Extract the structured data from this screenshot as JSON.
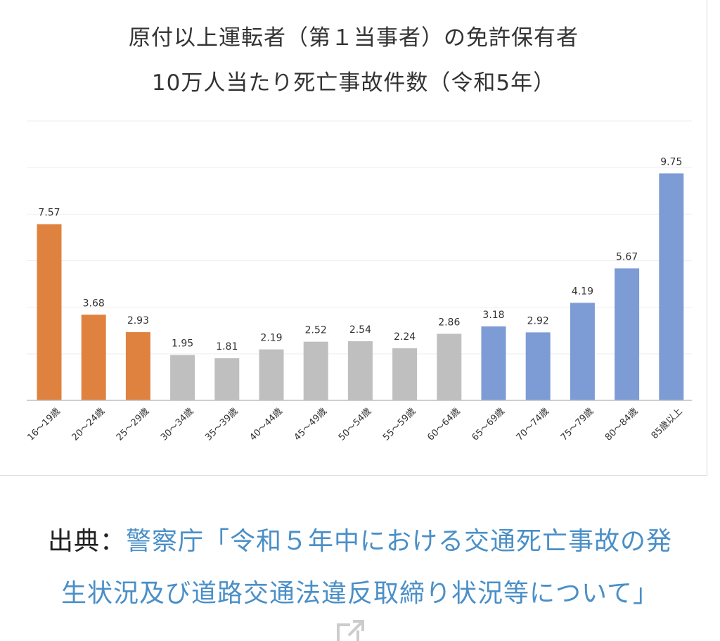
{
  "chart_data": {
    "type": "bar",
    "title_lines": [
      "原付以上運転者（第１当事者）の免許保有者",
      "10万人当たり死亡事故件数（令和5年）"
    ],
    "categories": [
      "16～19歳",
      "20～24歳",
      "25～29歳",
      "30～34歳",
      "35～39歳",
      "40～44歳",
      "45～49歳",
      "50～54歳",
      "55～59歳",
      "60～64歳",
      "65～69歳",
      "70～74歳",
      "75～79歳",
      "80～84歳",
      "85歳以上"
    ],
    "values": [
      7.57,
      3.68,
      2.93,
      1.95,
      1.81,
      2.19,
      2.52,
      2.54,
      2.24,
      2.86,
      3.18,
      2.92,
      4.19,
      5.67,
      9.75
    ],
    "value_labels": [
      "7.57",
      "3.68",
      "2.93",
      "1.95",
      "1.81",
      "2.19",
      "2.52",
      "2.54",
      "2.24",
      "2.86",
      "3.18",
      "2.92",
      "4.19",
      "5.67",
      "9.75"
    ],
    "bar_colors": [
      "#e0823f",
      "#e0823f",
      "#e0823f",
      "#bfbfbf",
      "#bfbfbf",
      "#bfbfbf",
      "#bfbfbf",
      "#bfbfbf",
      "#bfbfbf",
      "#bfbfbf",
      "#7d9bd4",
      "#7d9bd4",
      "#7d9bd4",
      "#7d9bd4",
      "#7d9bd4"
    ],
    "ylim": [
      0,
      12
    ],
    "grid": true,
    "y_ticks_shown": false,
    "legend": "none"
  },
  "source": {
    "prefix": "出典：",
    "link_line1": "警察庁「令和５年中における交通死亡事故の発",
    "link_line2": "生状況及び道路交通法違反取締り状況等について」"
  },
  "icons": {
    "external": "external-link-icon"
  },
  "colors": {
    "link": "#4a8fc7",
    "text": "#222222"
  }
}
